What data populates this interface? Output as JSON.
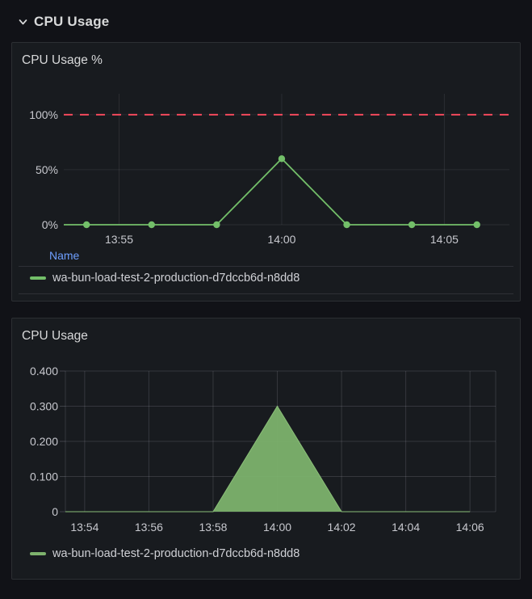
{
  "row_header": {
    "title": "CPU Usage",
    "chevron": "chevron-down-icon"
  },
  "panels": [
    {
      "title": "CPU Usage %",
      "legend_header": "Name"
    },
    {
      "title": "CPU Usage"
    }
  ],
  "chart_data": [
    {
      "type": "line",
      "title": "CPU Usage %",
      "unit": "percent",
      "x": [
        "13:54",
        "13:56",
        "13:58",
        "14:00",
        "14:02",
        "14:04",
        "14:06"
      ],
      "series": [
        {
          "name": "wa-bun-load-test-2-production-d7dccb6d-n8dd8",
          "color": "#73BF69",
          "values": [
            0,
            0,
            0,
            60,
            0,
            0,
            0
          ]
        }
      ],
      "x_ticks": [
        "13:55",
        "14:00",
        "14:05"
      ],
      "y_ticks": [
        {
          "value": 0,
          "label": "0%"
        },
        {
          "value": 50,
          "label": "50%"
        },
        {
          "value": 100,
          "label": "100%"
        }
      ],
      "xlim": [
        "13:53:18",
        "14:07:00"
      ],
      "ylim": [
        0,
        119
      ],
      "threshold": {
        "value": 100,
        "color": "#F2495C",
        "style": "dashed"
      },
      "grid": true,
      "show_points": true,
      "legend_position": "bottom"
    },
    {
      "type": "area",
      "title": "CPU Usage",
      "unit": "cores",
      "x": [
        "13:54",
        "13:56",
        "13:58",
        "14:00",
        "14:02",
        "14:04",
        "14:06"
      ],
      "series": [
        {
          "name": "wa-bun-load-test-2-production-d7dccb6d-n8dd8",
          "color": "#7EB26D",
          "values": [
            0,
            0,
            0,
            0.3,
            0,
            0,
            0
          ]
        }
      ],
      "x_ticks": [
        "13:54",
        "13:56",
        "13:58",
        "14:00",
        "14:02",
        "14:04",
        "14:06"
      ],
      "y_ticks": [
        {
          "value": 0,
          "label": "0"
        },
        {
          "value": 0.1,
          "label": "0.100"
        },
        {
          "value": 0.2,
          "label": "0.200"
        },
        {
          "value": 0.3,
          "label": "0.300"
        },
        {
          "value": 0.4,
          "label": "0.400"
        }
      ],
      "xlim": [
        "13:53:24",
        "14:06:48"
      ],
      "ylim": [
        0,
        0.4
      ],
      "grid": true,
      "show_points": false,
      "legend_position": "bottom"
    }
  ],
  "style_colors": {
    "page_bg": "#111217",
    "panel_bg": "#181B1F",
    "panel_border": "#2C2F33",
    "text_primary": "#D8D9DA",
    "axis_text": "#C7C8CE",
    "link_blue": "#6E9FFF",
    "green_line": "#73BF69",
    "green_fill": "#7CB26D",
    "threshold_red": "#F2495C"
  }
}
